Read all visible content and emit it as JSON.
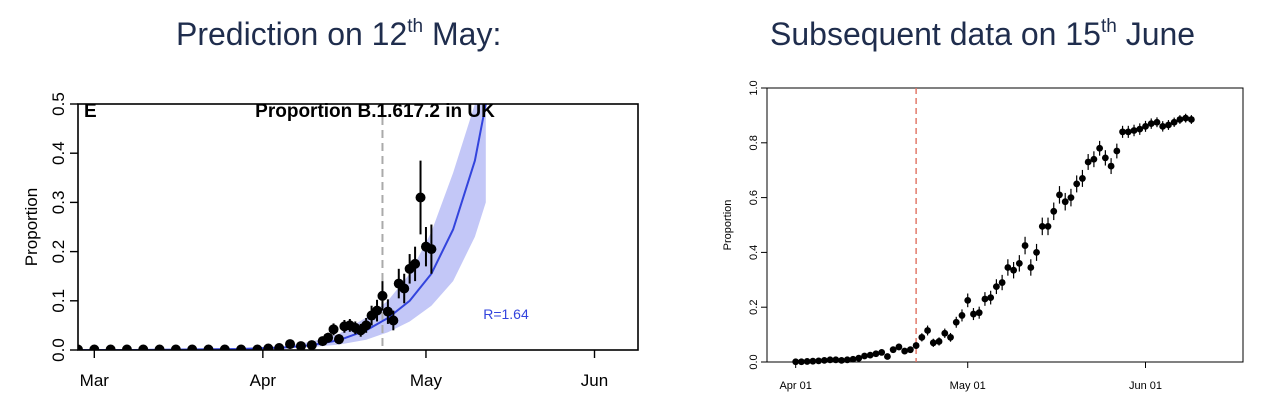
{
  "headings": {
    "left": {
      "before": "Prediction on 12",
      "sup": "th",
      "after": " May:"
    },
    "right": {
      "before": "Subsequent data on 15",
      "sup": "th",
      "after": " June"
    }
  },
  "chart_data": [
    {
      "type": "line",
      "panel_letter": "E",
      "title": "Proportion B.1.617.2 in UK",
      "ylabel": "Proportion",
      "xlabel": "",
      "x_unit": "date",
      "xlim": [
        "2021-02-26",
        "2021-06-09"
      ],
      "ylim": [
        0,
        0.5
      ],
      "x_ticks": [
        {
          "date": "2021-03-01",
          "label": "Mar"
        },
        {
          "date": "2021-04-01",
          "label": "Apr"
        },
        {
          "date": "2021-05-01",
          "label": "May"
        },
        {
          "date": "2021-06-01",
          "label": "Jun"
        }
      ],
      "y_ticks": [
        "0.0",
        "0.1",
        "0.2",
        "0.3",
        "0.4",
        "0.5"
      ],
      "y_tick_values": [
        0,
        0.1,
        0.2,
        0.3,
        0.4,
        0.5
      ],
      "vline_date": "2021-04-23",
      "annotation": "R=1.64",
      "colors": {
        "fit": "#3344dd",
        "band": "#c3c7f7",
        "points": "#000000",
        "vline": "#aaaaaa",
        "annotation": "#3344dd"
      },
      "fit": {
        "name": "fit",
        "x": [
          "2021-02-26",
          "2021-03-08",
          "2021-03-18",
          "2021-03-28",
          "2021-04-05",
          "2021-04-10",
          "2021-04-15",
          "2021-04-20",
          "2021-04-24",
          "2021-04-28",
          "2021-05-02",
          "2021-05-06",
          "2021-05-10",
          "2021-05-12"
        ],
        "y": [
          0.0,
          0.0,
          0.001,
          0.002,
          0.005,
          0.01,
          0.02,
          0.04,
          0.065,
          0.1,
          0.155,
          0.245,
          0.385,
          0.5
        ],
        "lower": [
          0.0,
          0.0,
          0.0,
          0.001,
          0.003,
          0.006,
          0.011,
          0.021,
          0.036,
          0.058,
          0.09,
          0.14,
          0.23,
          0.3
        ],
        "upper": [
          0.001,
          0.001,
          0.002,
          0.004,
          0.008,
          0.017,
          0.033,
          0.066,
          0.1,
          0.155,
          0.24,
          0.36,
          0.5,
          0.5
        ]
      },
      "points": {
        "x": [
          "2021-02-26",
          "2021-03-01",
          "2021-03-04",
          "2021-03-07",
          "2021-03-10",
          "2021-03-13",
          "2021-03-16",
          "2021-03-19",
          "2021-03-22",
          "2021-03-25",
          "2021-03-28",
          "2021-03-31",
          "2021-04-02",
          "2021-04-04",
          "2021-04-06",
          "2021-04-08",
          "2021-04-10",
          "2021-04-12",
          "2021-04-13",
          "2021-04-14",
          "2021-04-15",
          "2021-04-16",
          "2021-04-17",
          "2021-04-18",
          "2021-04-19",
          "2021-04-20",
          "2021-04-21",
          "2021-04-22",
          "2021-04-23",
          "2021-04-24",
          "2021-04-25",
          "2021-04-26",
          "2021-04-27",
          "2021-04-28",
          "2021-04-29",
          "2021-04-30",
          "2021-05-01",
          "2021-05-02"
        ],
        "y": [
          0.001,
          0.001,
          0.001,
          0.001,
          0.001,
          0.001,
          0.001,
          0.001,
          0.001,
          0.001,
          0.001,
          0.001,
          0.003,
          0.004,
          0.012,
          0.008,
          0.01,
          0.018,
          0.025,
          0.042,
          0.022,
          0.048,
          0.05,
          0.045,
          0.04,
          0.05,
          0.07,
          0.08,
          0.11,
          0.078,
          0.06,
          0.135,
          0.125,
          0.165,
          0.175,
          0.31,
          0.21,
          0.205
        ],
        "err": [
          0.001,
          0.001,
          0.001,
          0.001,
          0.001,
          0.001,
          0.001,
          0.001,
          0.001,
          0.001,
          0.001,
          0.001,
          0.003,
          0.003,
          0.005,
          0.005,
          0.006,
          0.008,
          0.01,
          0.012,
          0.01,
          0.013,
          0.013,
          0.013,
          0.013,
          0.015,
          0.02,
          0.022,
          0.03,
          0.025,
          0.02,
          0.03,
          0.03,
          0.03,
          0.035,
          0.075,
          0.04,
          0.05
        ]
      }
    },
    {
      "type": "scatter",
      "title": "",
      "ylabel": "Proportion",
      "xlabel": "",
      "x_unit": "date",
      "xlim": [
        "2021-03-27",
        "2021-06-18"
      ],
      "ylim": [
        0,
        1
      ],
      "x_ticks": [
        {
          "date": "2021-04-01",
          "label": "Apr 01"
        },
        {
          "date": "2021-05-01",
          "label": "May 01"
        },
        {
          "date": "2021-06-01",
          "label": "Jun 01"
        }
      ],
      "y_ticks": [
        "0.0",
        "0.2",
        "0.4",
        "0.6",
        "0.8",
        "1.0"
      ],
      "y_tick_values": [
        0,
        0.2,
        0.4,
        0.6,
        0.8,
        1.0
      ],
      "vline_date": "2021-04-22",
      "colors": {
        "points": "#000000",
        "vline": "#e07060"
      },
      "points": {
        "x": [
          "2021-04-01",
          "2021-04-02",
          "2021-04-03",
          "2021-04-04",
          "2021-04-05",
          "2021-04-06",
          "2021-04-07",
          "2021-04-08",
          "2021-04-09",
          "2021-04-10",
          "2021-04-11",
          "2021-04-12",
          "2021-04-13",
          "2021-04-14",
          "2021-04-15",
          "2021-04-16",
          "2021-04-17",
          "2021-04-18",
          "2021-04-19",
          "2021-04-20",
          "2021-04-21",
          "2021-04-22",
          "2021-04-23",
          "2021-04-24",
          "2021-04-25",
          "2021-04-26",
          "2021-04-27",
          "2021-04-28",
          "2021-04-29",
          "2021-04-30",
          "2021-05-01",
          "2021-05-02",
          "2021-05-03",
          "2021-05-04",
          "2021-05-05",
          "2021-05-06",
          "2021-05-07",
          "2021-05-08",
          "2021-05-09",
          "2021-05-10",
          "2021-05-11",
          "2021-05-12",
          "2021-05-13",
          "2021-05-14",
          "2021-05-15",
          "2021-05-16",
          "2021-05-17",
          "2021-05-18",
          "2021-05-19",
          "2021-05-20",
          "2021-05-21",
          "2021-05-22",
          "2021-05-23",
          "2021-05-24",
          "2021-05-25",
          "2021-05-26",
          "2021-05-27",
          "2021-05-28",
          "2021-05-29",
          "2021-05-30",
          "2021-05-31",
          "2021-06-01",
          "2021-06-02",
          "2021-06-03",
          "2021-06-04",
          "2021-06-05",
          "2021-06-06",
          "2021-06-07",
          "2021-06-08",
          "2021-06-09"
        ],
        "y": [
          0.001,
          0.001,
          0.002,
          0.003,
          0.004,
          0.006,
          0.008,
          0.008,
          0.006,
          0.008,
          0.01,
          0.014,
          0.022,
          0.025,
          0.03,
          0.035,
          0.02,
          0.045,
          0.055,
          0.04,
          0.045,
          0.06,
          0.09,
          0.115,
          0.07,
          0.075,
          0.105,
          0.09,
          0.145,
          0.17,
          0.225,
          0.175,
          0.18,
          0.23,
          0.235,
          0.275,
          0.29,
          0.345,
          0.335,
          0.36,
          0.425,
          0.345,
          0.4,
          0.495,
          0.495,
          0.55,
          0.61,
          0.585,
          0.6,
          0.65,
          0.67,
          0.73,
          0.74,
          0.78,
          0.745,
          0.715,
          0.77,
          0.84,
          0.84,
          0.845,
          0.85,
          0.86,
          0.87,
          0.875,
          0.86,
          0.865,
          0.875,
          0.885,
          0.89,
          0.885
        ],
        "err": [
          0.001,
          0.001,
          0.001,
          0.002,
          0.002,
          0.003,
          0.003,
          0.003,
          0.003,
          0.003,
          0.004,
          0.005,
          0.006,
          0.007,
          0.008,
          0.008,
          0.007,
          0.01,
          0.012,
          0.01,
          0.01,
          0.012,
          0.015,
          0.018,
          0.015,
          0.015,
          0.017,
          0.016,
          0.02,
          0.022,
          0.025,
          0.022,
          0.022,
          0.025,
          0.025,
          0.027,
          0.028,
          0.03,
          0.03,
          0.03,
          0.032,
          0.03,
          0.031,
          0.032,
          0.032,
          0.032,
          0.032,
          0.032,
          0.032,
          0.031,
          0.031,
          0.029,
          0.029,
          0.027,
          0.028,
          0.029,
          0.027,
          0.022,
          0.022,
          0.021,
          0.021,
          0.02,
          0.019,
          0.018,
          0.019,
          0.018,
          0.017,
          0.016,
          0.016,
          0.016
        ]
      }
    }
  ]
}
